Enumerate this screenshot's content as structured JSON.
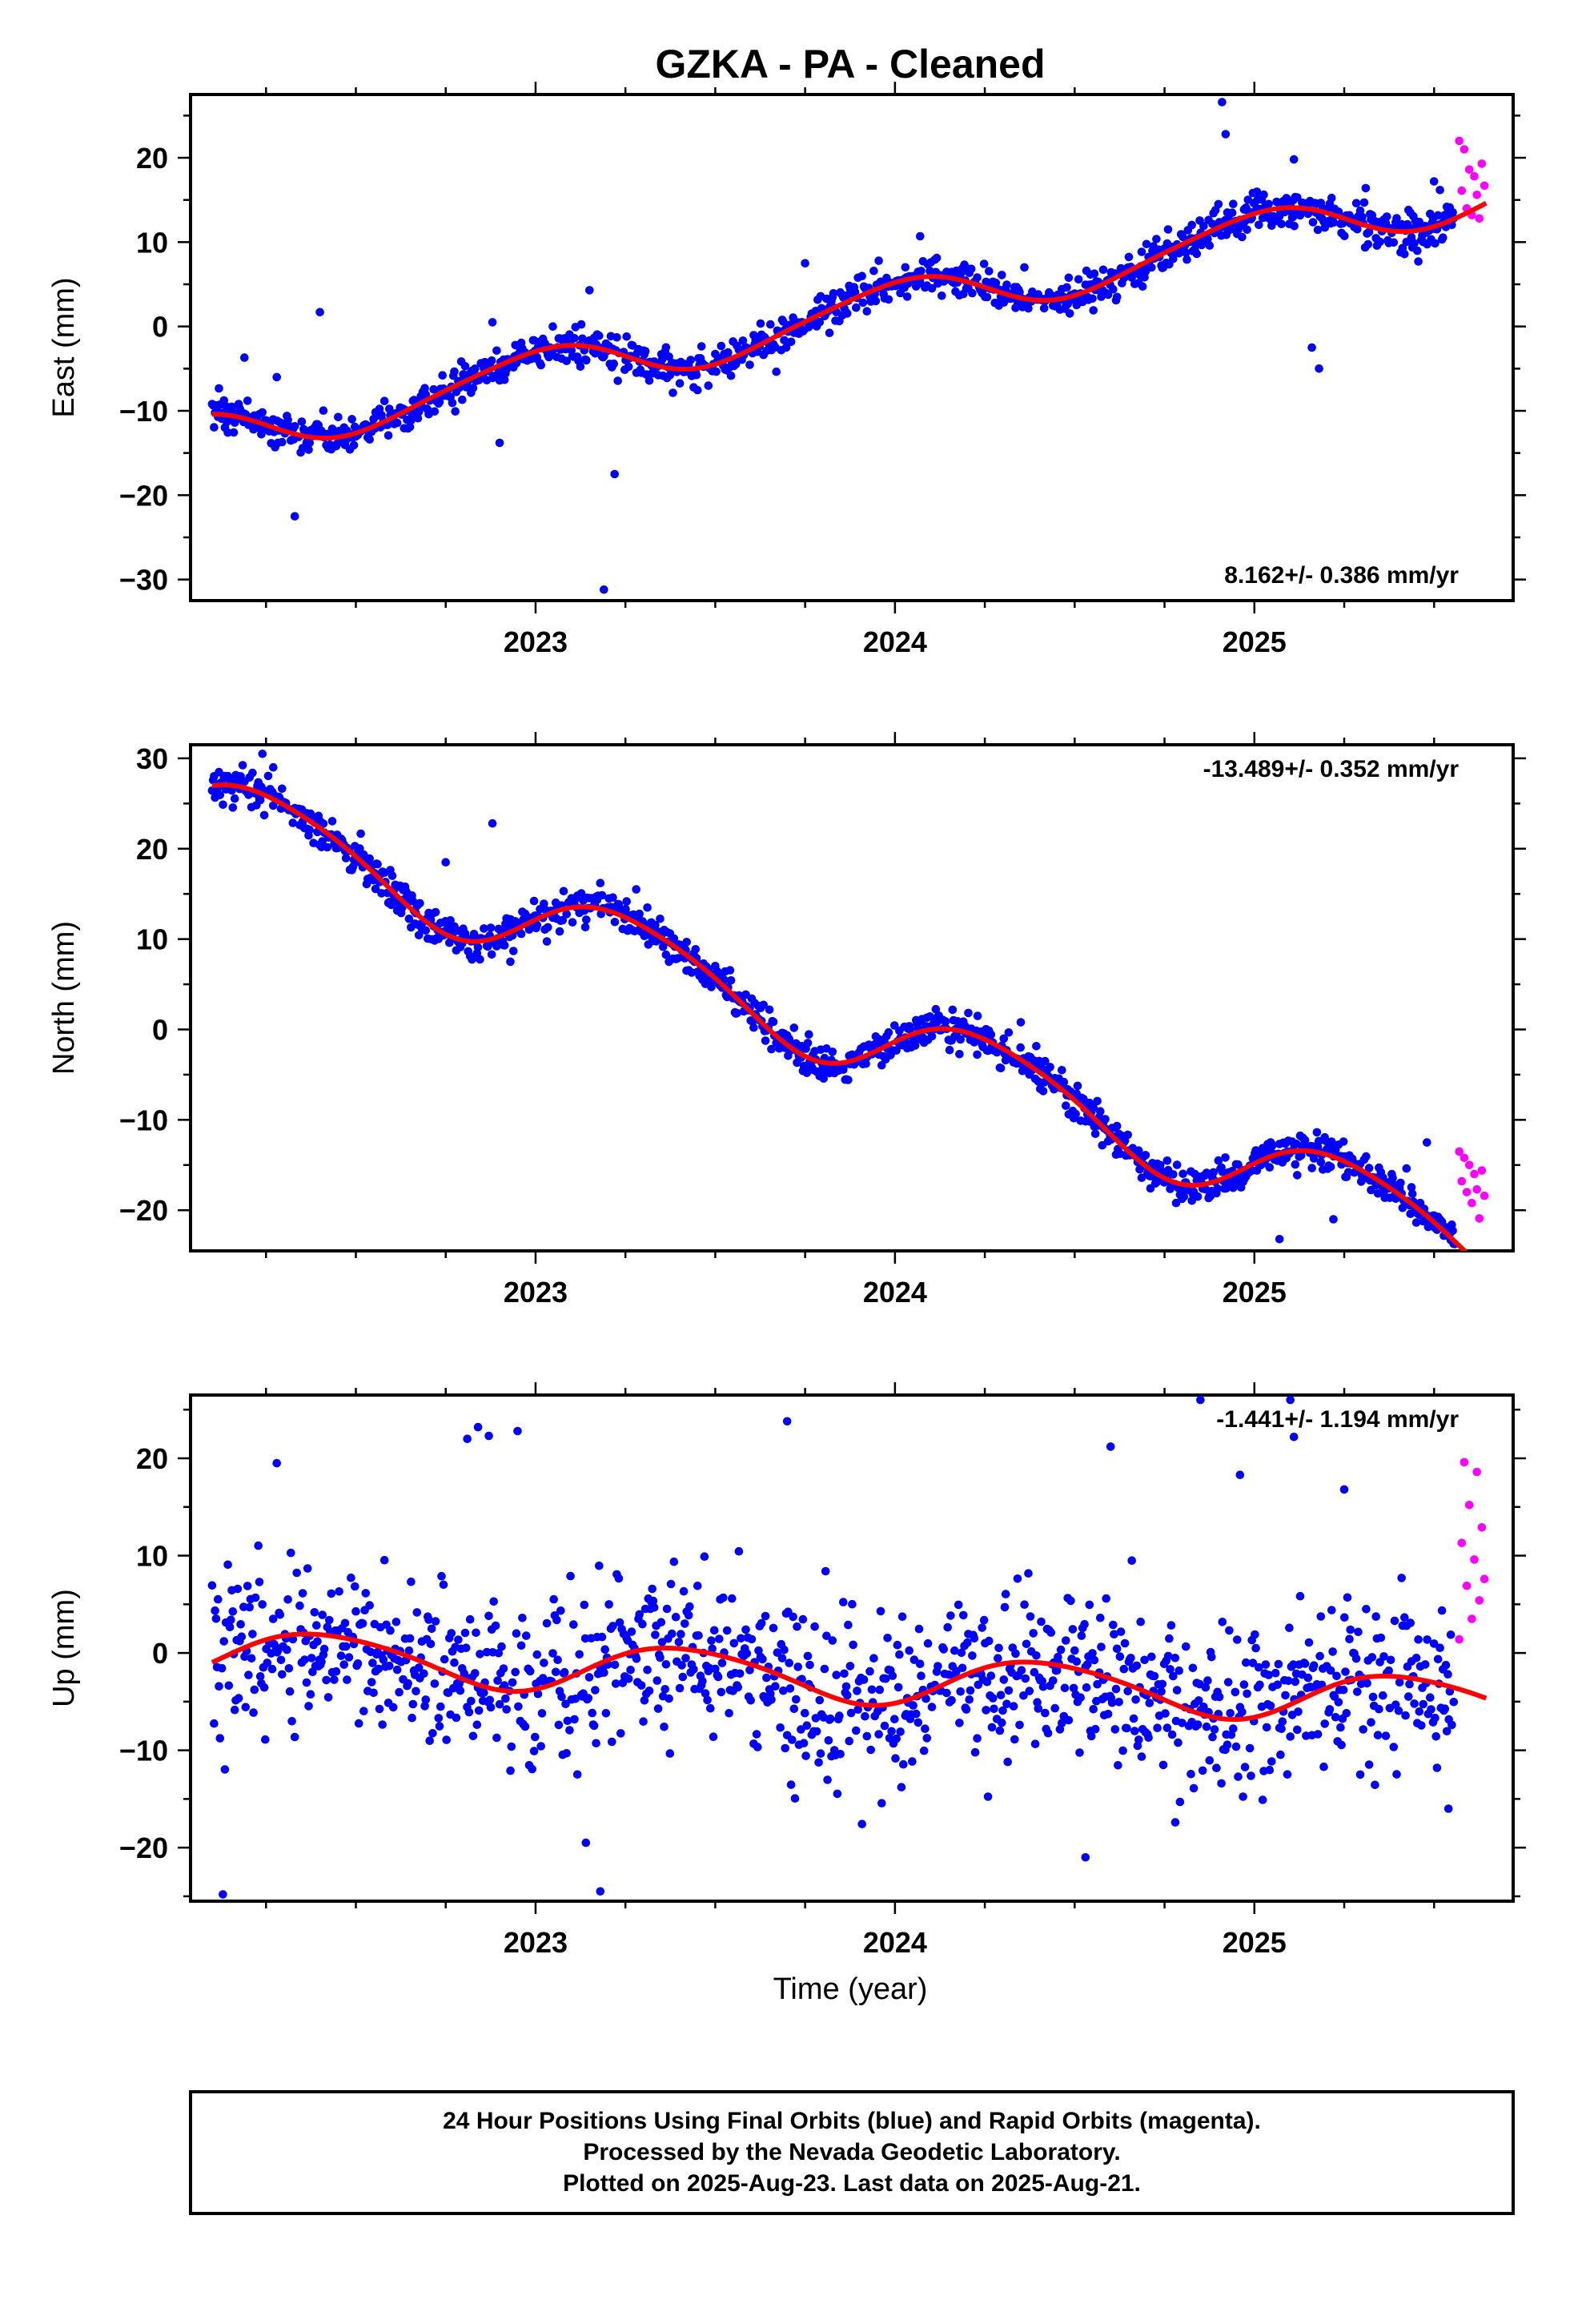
{
  "title": "GZKA  - PA - Cleaned",
  "xlabel": "Time (year)",
  "colors": {
    "final": "#0000ff",
    "rapid": "#ff00ff",
    "fit": "#ff0000"
  },
  "footer": [
    "24 Hour Positions Using Final Orbits (blue) and Rapid Orbits (magenta).",
    "Processed by the Nevada Geodetic Laboratory.",
    "Plotted on 2025-Aug-23. Last data on 2025-Aug-21."
  ],
  "chart_data": [
    {
      "type": "scatter",
      "ylabel": "East (mm)",
      "rate": "8.162+/- 0.386 mm/yr",
      "rate_position": "bottom-right",
      "xlim": [
        2022.04,
        2025.72
      ],
      "ylim": [
        -32.5,
        27.5
      ],
      "xticks": [
        2023,
        2024,
        2025
      ],
      "yticks": [
        -30,
        -20,
        -10,
        0,
        10,
        20
      ],
      "grid": false,
      "trend": {
        "t0": 2022.1,
        "y0": -13.0,
        "rate": 8.162,
        "annual_amp": 2.8,
        "annual_phase": 2.2,
        "semi_amp": 0.4,
        "semi_phase": 1.0
      },
      "series": [
        {
          "name": "Final Orbits",
          "x_range": [
            2022.1,
            2025.56
          ],
          "noise_sd": 1.1,
          "outliers": [
            [
              2022.19,
              -3.7
            ],
            [
              2022.28,
              -6.0
            ],
            [
              2022.33,
              -22.5
            ],
            [
              2022.4,
              1.7
            ],
            [
              2022.88,
              0.5
            ],
            [
              2022.9,
              -13.8
            ],
            [
              2023.15,
              4.3
            ],
            [
              2023.19,
              -31.2
            ],
            [
              2023.22,
              -17.5
            ],
            [
              2023.35,
              -3.3
            ],
            [
              2023.75,
              7.5
            ],
            [
              2024.07,
              10.7
            ],
            [
              2024.36,
              7.0
            ],
            [
              2024.76,
              11.5
            ],
            [
              2024.9,
              14.5
            ],
            [
              2024.91,
              26.6
            ],
            [
              2024.92,
              22.8
            ],
            [
              2025.11,
              19.8
            ],
            [
              2025.16,
              -2.5
            ],
            [
              2025.18,
              -5.0
            ],
            [
              2025.31,
              16.4
            ],
            [
              2025.5,
              17.2
            ]
          ]
        },
        {
          "name": "Rapid Orbits",
          "x_range": [
            2025.57,
            2025.64
          ],
          "values": [
            [
              2025.57,
              22.0
            ],
            [
              2025.577,
              16.1
            ],
            [
              2025.584,
              21.0
            ],
            [
              2025.591,
              14.0
            ],
            [
              2025.598,
              18.6
            ],
            [
              2025.605,
              13.2
            ],
            [
              2025.612,
              17.8
            ],
            [
              2025.619,
              15.6
            ],
            [
              2025.626,
              12.8
            ],
            [
              2025.633,
              19.3
            ],
            [
              2025.64,
              16.7
            ]
          ]
        }
      ]
    },
    {
      "type": "scatter",
      "ylabel": "North (mm)",
      "rate": "-13.489+/- 0.352 mm/yr",
      "rate_position": "top-right",
      "xlim": [
        2022.04,
        2025.72
      ],
      "ylim": [
        -24.5,
        31.5
      ],
      "xticks": [
        2023,
        2024,
        2025
      ],
      "yticks": [
        -20,
        -10,
        0,
        10,
        20,
        30
      ],
      "grid": false,
      "trend": {
        "t0": 2022.1,
        "y0": 24.0,
        "rate": -13.489,
        "annual_amp": 4.3,
        "annual_phase": 0.6,
        "semi_amp": 0.6,
        "semi_phase": 2.0
      },
      "series": [
        {
          "name": "Final Orbits",
          "x_range": [
            2022.1,
            2025.56
          ],
          "noise_sd": 1.0,
          "outliers": [
            [
              2022.24,
              30.5
            ],
            [
              2022.27,
              29.0
            ],
            [
              2022.75,
              18.5
            ],
            [
              2022.88,
              22.8
            ],
            [
              2022.93,
              7.5
            ],
            [
              2023.18,
              16.2
            ],
            [
              2023.28,
              15.5
            ],
            [
              2023.42,
              6.5
            ],
            [
              2023.62,
              2.6
            ],
            [
              2024.23,
              1.5
            ],
            [
              2024.35,
              0.8
            ],
            [
              2024.55,
              -8.5
            ],
            [
              2025.07,
              -23.2
            ],
            [
              2025.22,
              -21.0
            ],
            [
              2025.48,
              -12.5
            ]
          ]
        },
        {
          "name": "Rapid Orbits",
          "x_range": [
            2025.57,
            2025.64
          ],
          "values": [
            [
              2025.57,
              -13.5
            ],
            [
              2025.577,
              -16.8
            ],
            [
              2025.584,
              -14.2
            ],
            [
              2025.591,
              -18.0
            ],
            [
              2025.598,
              -15.0
            ],
            [
              2025.605,
              -19.2
            ],
            [
              2025.612,
              -16.0
            ],
            [
              2025.619,
              -17.7
            ],
            [
              2025.626,
              -20.9
            ],
            [
              2025.633,
              -15.6
            ],
            [
              2025.64,
              -18.4
            ]
          ]
        }
      ]
    },
    {
      "type": "scatter",
      "ylabel": "Up (mm)",
      "rate": "-1.441+/- 1.194 mm/yr",
      "rate_position": "top-right",
      "xlim": [
        2022.04,
        2025.72
      ],
      "ylim": [
        -25.5,
        26.5
      ],
      "xticks": [
        2023,
        2024,
        2025
      ],
      "yticks": [
        -20,
        -10,
        0,
        10,
        20
      ],
      "grid": false,
      "trend": {
        "t0": 2022.1,
        "y0": 0.0,
        "rate": -1.441,
        "annual_amp": 2.5,
        "annual_phase": -0.4,
        "semi_amp": 0.3,
        "semi_phase": 0.0
      },
      "series": [
        {
          "name": "Final Orbits",
          "x_range": [
            2022.1,
            2025.56
          ],
          "noise_sd": 4.2,
          "outliers": [
            [
              2022.13,
              -24.8
            ],
            [
              2022.28,
              19.5
            ],
            [
              2022.81,
              22.0
            ],
            [
              2022.84,
              23.2
            ],
            [
              2022.87,
              22.3
            ],
            [
              2022.95,
              22.8
            ],
            [
              2023.14,
              -19.5
            ],
            [
              2023.18,
              -24.5
            ],
            [
              2023.7,
              23.8
            ],
            [
              2024.53,
              -21.0
            ],
            [
              2024.6,
              21.2
            ],
            [
              2024.78,
              -17.4
            ],
            [
              2024.85,
              26.0
            ],
            [
              2024.96,
              18.3
            ],
            [
              2025.1,
              26.0
            ],
            [
              2025.11,
              22.2
            ],
            [
              2025.25,
              16.8
            ],
            [
              2025.54,
              -16.0
            ]
          ]
        },
        {
          "name": "Rapid Orbits",
          "x_range": [
            2025.57,
            2025.64
          ],
          "values": [
            [
              2025.57,
              1.4
            ],
            [
              2025.577,
              11.3
            ],
            [
              2025.584,
              19.6
            ],
            [
              2025.591,
              6.9
            ],
            [
              2025.598,
              15.2
            ],
            [
              2025.605,
              3.5
            ],
            [
              2025.612,
              9.6
            ],
            [
              2025.619,
              18.6
            ],
            [
              2025.626,
              5.4
            ],
            [
              2025.633,
              12.9
            ],
            [
              2025.64,
              7.6
            ]
          ]
        }
      ]
    }
  ]
}
